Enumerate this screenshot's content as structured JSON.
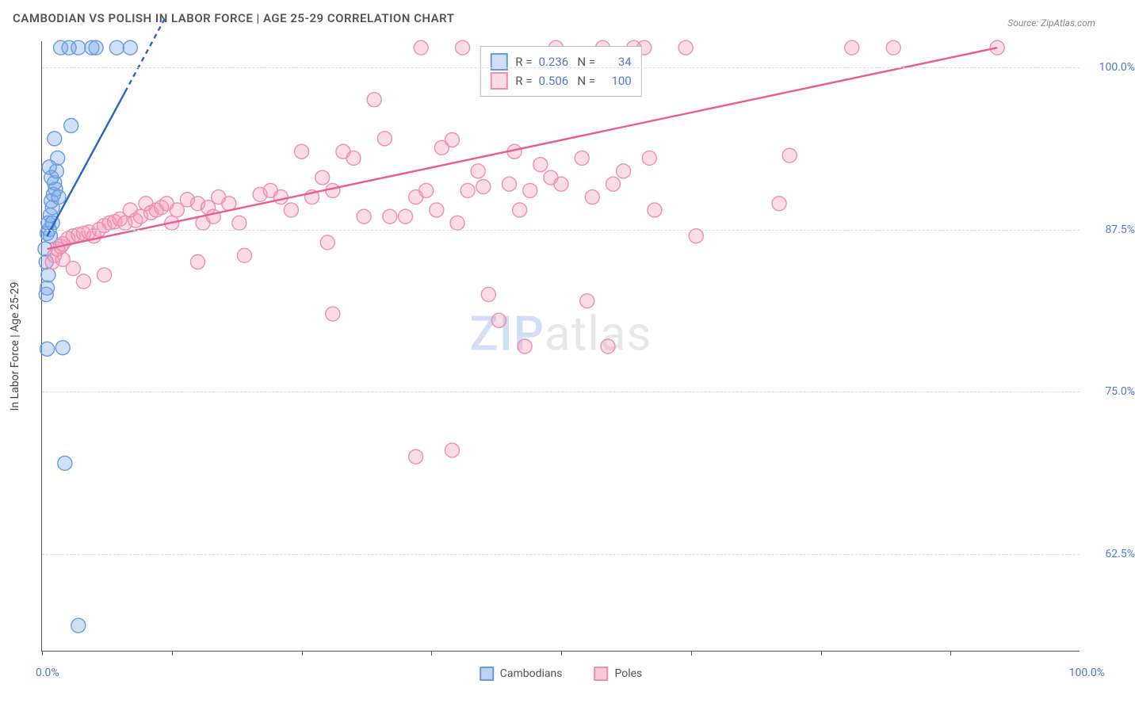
{
  "title": "CAMBODIAN VS POLISH IN LABOR FORCE | AGE 25-29 CORRELATION CHART",
  "source": "Source: ZipAtlas.com",
  "watermark_zip": "ZIP",
  "watermark_atlas": "atlas",
  "chart": {
    "type": "scatter-correlation",
    "x_axis_title": "",
    "y_axis_title": "In Labor Force | Age 25-29",
    "xlim": [
      0,
      100
    ],
    "ylim": [
      55,
      102
    ],
    "x_tick_positions": [
      0,
      12.5,
      25,
      37.5,
      50,
      62.5,
      75,
      87.5
    ],
    "x_left_label": "0.0%",
    "x_right_label": "100.0%",
    "y_ticks": [
      62.5,
      75.0,
      87.5,
      100.0
    ],
    "y_tick_labels": [
      "62.5%",
      "75.0%",
      "87.5%",
      "100.0%"
    ],
    "grid_color": "#dddddd",
    "background_color": "#ffffff",
    "axis_color": "#555555",
    "label_color": "#4a7bd6",
    "marker_radius": 9,
    "marker_stroke_width": 1.4,
    "series": [
      {
        "name": "Cambodians",
        "color_fill": "rgba(120,165,230,0.35)",
        "color_stroke": "#6a9ae0",
        "trend_color": "#2a66c8",
        "trend_width": 2.4,
        "R": 0.236,
        "N": 34,
        "trend_line": {
          "x1": 0.5,
          "y1": 87.0,
          "x2": 12,
          "y2": 104,
          "dashed_after_x": 8
        },
        "points": [
          [
            0.5,
            87.2
          ],
          [
            0.7,
            87.5
          ],
          [
            0.6,
            88.0
          ],
          [
            0.8,
            88.6
          ],
          [
            1.0,
            89.2
          ],
          [
            0.9,
            89.7
          ],
          [
            1.1,
            90.2
          ],
          [
            1.3,
            90.6
          ],
          [
            1.2,
            91.1
          ],
          [
            1.0,
            88.0
          ],
          [
            0.8,
            87.0
          ],
          [
            1.5,
            93.0
          ],
          [
            1.2,
            94.5
          ],
          [
            2.8,
            95.5
          ],
          [
            3.5,
            101.5
          ],
          [
            4.8,
            101.5
          ],
          [
            5.2,
            101.5
          ],
          [
            7.2,
            101.5
          ],
          [
            8.5,
            101.5
          ],
          [
            1.8,
            101.5
          ],
          [
            2.6,
            101.5
          ],
          [
            0.4,
            82.5
          ],
          [
            0.5,
            83.0
          ],
          [
            0.6,
            84.0
          ],
          [
            0.4,
            85.0
          ],
          [
            0.5,
            78.3
          ],
          [
            2.0,
            78.4
          ],
          [
            2.2,
            69.5
          ],
          [
            3.5,
            57.0
          ],
          [
            0.3,
            86.0
          ],
          [
            0.9,
            91.5
          ],
          [
            0.7,
            92.3
          ],
          [
            1.4,
            92.0
          ],
          [
            1.6,
            90.0
          ]
        ]
      },
      {
        "name": "Poles",
        "color_fill": "rgba(245,150,180,0.32)",
        "color_stroke": "#ec8fb3",
        "trend_color": "#e85d94",
        "trend_width": 2.4,
        "R": 0.506,
        "N": 100,
        "trend_line": {
          "x1": 0.5,
          "y1": 86.0,
          "x2": 92,
          "y2": 101.5,
          "dashed_after_x": 100
        },
        "points": [
          [
            1.0,
            85.0
          ],
          [
            1.2,
            85.5
          ],
          [
            1.5,
            86.0
          ],
          [
            1.8,
            86.2
          ],
          [
            2.0,
            86.4
          ],
          [
            2.5,
            86.8
          ],
          [
            3.0,
            87.0
          ],
          [
            3.5,
            87.1
          ],
          [
            4.0,
            87.2
          ],
          [
            4.5,
            87.3
          ],
          [
            5.0,
            87.0
          ],
          [
            5.5,
            87.5
          ],
          [
            6.0,
            87.8
          ],
          [
            6.5,
            88.0
          ],
          [
            7.0,
            88.1
          ],
          [
            7.5,
            88.3
          ],
          [
            8.0,
            88.0
          ],
          [
            8.5,
            89.0
          ],
          [
            9.0,
            88.2
          ],
          [
            9.5,
            88.5
          ],
          [
            10,
            89.5
          ],
          [
            10.5,
            88.8
          ],
          [
            11,
            89.0
          ],
          [
            11.5,
            89.2
          ],
          [
            12,
            89.5
          ],
          [
            12.5,
            88.0
          ],
          [
            13,
            89.0
          ],
          [
            14,
            89.8
          ],
          [
            15,
            89.5
          ],
          [
            15.5,
            88.0
          ],
          [
            16,
            89.2
          ],
          [
            16.5,
            88.5
          ],
          [
            17,
            90.0
          ],
          [
            18,
            89.5
          ],
          [
            19,
            88.0
          ],
          [
            19.5,
            85.5
          ],
          [
            15,
            85.0
          ],
          [
            21,
            90.2
          ],
          [
            22,
            90.5
          ],
          [
            23,
            90.0
          ],
          [
            24,
            89.0
          ],
          [
            25,
            93.5
          ],
          [
            26,
            90.0
          ],
          [
            27,
            91.5
          ],
          [
            28,
            90.5
          ],
          [
            29,
            93.5
          ],
          [
            30,
            93.0
          ],
          [
            31,
            88.5
          ],
          [
            32,
            97.5
          ],
          [
            33,
            94.5
          ],
          [
            28,
            81.0
          ],
          [
            33.5,
            88.5
          ],
          [
            35,
            88.5
          ],
          [
            36,
            90.0
          ],
          [
            36.5,
            101.5
          ],
          [
            37,
            90.5
          ],
          [
            38,
            89.0
          ],
          [
            38.5,
            93.8
          ],
          [
            39.5,
            94.4
          ],
          [
            40,
            88.0
          ],
          [
            41,
            90.5
          ],
          [
            42,
            92.0
          ],
          [
            42.5,
            90.8
          ],
          [
            43,
            82.5
          ],
          [
            44,
            80.5
          ],
          [
            45,
            91.0
          ],
          [
            45.5,
            93.5
          ],
          [
            46,
            89.0
          ],
          [
            46.5,
            78.5
          ],
          [
            47,
            90.5
          ],
          [
            48,
            92.5
          ],
          [
            49,
            91.5
          ],
          [
            40.5,
            101.5
          ],
          [
            49.5,
            101.5
          ],
          [
            36,
            70.0
          ],
          [
            39.5,
            70.5
          ],
          [
            50,
            91.0
          ],
          [
            52,
            93.0
          ],
          [
            52.5,
            82.0
          ],
          [
            53,
            90.0
          ],
          [
            54,
            101.5
          ],
          [
            55,
            91.0
          ],
          [
            54.5,
            78.5
          ],
          [
            56,
            92.0
          ],
          [
            57,
            101.5
          ],
          [
            58,
            101.5
          ],
          [
            58.5,
            93.0
          ],
          [
            59,
            89.0
          ],
          [
            62,
            101.5
          ],
          [
            63,
            87.0
          ],
          [
            71,
            89.5
          ],
          [
            72,
            93.2
          ],
          [
            27.5,
            86.5
          ],
          [
            78,
            101.5
          ],
          [
            82,
            101.5
          ],
          [
            92,
            101.5
          ],
          [
            4,
            83.5
          ],
          [
            6,
            84.0
          ],
          [
            3,
            84.5
          ],
          [
            2,
            85.2
          ]
        ]
      }
    ]
  },
  "legend": {
    "R_label": "R =",
    "N_label": "N ="
  },
  "bottom_legend": [
    {
      "label": "Cambodians",
      "fill": "rgba(120,165,230,0.5)",
      "stroke": "#6a9ae0"
    },
    {
      "label": "Poles",
      "fill": "rgba(245,150,180,0.5)",
      "stroke": "#ec8fb3"
    }
  ]
}
